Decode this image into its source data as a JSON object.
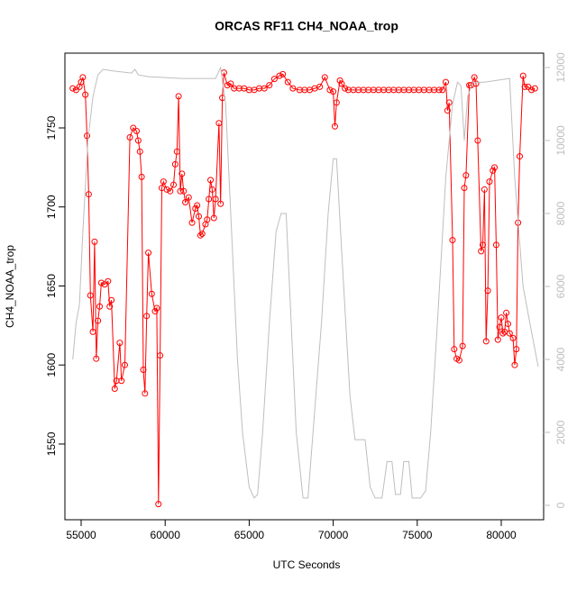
{
  "chart_data": {
    "type": "line",
    "title": "ORCAS RF11 CH4_NOAA_trop",
    "x_label": "UTC Seconds",
    "y_label": "CH4_NOAA_trop",
    "xlim": [
      54034,
      82521
    ],
    "ylim": [
      1502.1,
      1797.3
    ],
    "y2lim": [
      -395,
      12395
    ],
    "xticks": [
      55000,
      60000,
      65000,
      70000,
      75000,
      80000
    ],
    "yticks": [
      1550,
      1600,
      1650,
      1700,
      1750
    ],
    "y2ticks": [
      0,
      2000,
      4000,
      6000,
      8000,
      10000,
      12000
    ],
    "series": [
      {
        "color": "#ff0000",
        "style": "points-line",
        "x": [
          54500,
          54700,
          54900,
          55000,
          55100,
          55250,
          55350,
          55450,
          55550,
          55700,
          55800,
          55900,
          56000,
          56100,
          56200,
          56400,
          56600,
          56700,
          56800,
          57000,
          57100,
          57300,
          57400,
          57600,
          57900,
          58100,
          58300,
          58400,
          58500,
          58600,
          58700,
          58800,
          58900,
          59000,
          59200,
          59400,
          59500,
          59600,
          59700,
          59800,
          59900,
          60100,
          60300,
          60500,
          60600,
          60700,
          60800,
          60900,
          61000,
          61100,
          61200,
          61400,
          61600,
          61800,
          61900,
          62000,
          62100,
          62200,
          62400,
          62500,
          62600,
          62700,
          62800,
          62900,
          63000,
          63200,
          63300,
          63400,
          63500,
          63700,
          63900,
          64100,
          64400,
          64700,
          65000,
          65300,
          65600,
          65900,
          66200,
          66500,
          66800,
          67000,
          67300,
          67600,
          68000,
          68300,
          68600,
          68900,
          69200,
          69500,
          69800,
          70000,
          70100,
          70200,
          70400,
          70500,
          70700,
          70900,
          71200,
          71500,
          71800,
          72100,
          72400,
          72700,
          73000,
          73300,
          73600,
          73900,
          74200,
          74500,
          74800,
          75100,
          75400,
          75700,
          76000,
          76300,
          76500,
          76700,
          76800,
          76900,
          77100,
          77200,
          77350,
          77500,
          77700,
          77800,
          77900,
          78100,
          78200,
          78400,
          78500,
          78600,
          78800,
          78900,
          79000,
          79100,
          79200,
          79300,
          79500,
          79600,
          79700,
          79800,
          79900,
          80000,
          80100,
          80200,
          80300,
          80400,
          80500,
          80700,
          80800,
          80900,
          81000,
          81100,
          81300,
          81400,
          81600,
          81800,
          82000
        ],
        "values": [
          1775,
          1774,
          1776,
          1779,
          1782,
          1771,
          1745,
          1708,
          1644,
          1621,
          1678,
          1604,
          1628,
          1637,
          1652,
          1651,
          1653,
          1637,
          1641,
          1585,
          1590,
          1614,
          1590,
          1600,
          1744,
          1750,
          1748,
          1742,
          1735,
          1719,
          1597,
          1582,
          1631,
          1671,
          1645,
          1634,
          1636,
          1512,
          1606,
          1712,
          1716,
          1711,
          1710,
          1714,
          1727,
          1735,
          1770,
          1710,
          1721,
          1710,
          1703,
          1706,
          1690,
          1699,
          1701,
          1694,
          1682,
          1683,
          1689,
          1692,
          1705,
          1717,
          1711,
          1693,
          1705,
          1753,
          1702,
          1769,
          1785,
          1777,
          1778,
          1775,
          1775,
          1775,
          1774,
          1774,
          1775,
          1775,
          1777,
          1781,
          1783,
          1784,
          1779,
          1775,
          1774,
          1774,
          1774,
          1775,
          1776,
          1782,
          1774,
          1773,
          1751,
          1766,
          1780,
          1778,
          1775,
          1774,
          1774,
          1774,
          1774,
          1774,
          1774,
          1774,
          1774,
          1774,
          1774,
          1774,
          1774,
          1774,
          1774,
          1774,
          1774,
          1774,
          1774,
          1774,
          1774,
          1779,
          1761,
          1766,
          1679,
          1610,
          1604,
          1603,
          1612,
          1712,
          1720,
          1777,
          1777,
          1782,
          1778,
          1742,
          1672,
          1676,
          1711,
          1615,
          1647,
          1716,
          1723,
          1725,
          1676,
          1616,
          1624,
          1630,
          1620,
          1621,
          1633,
          1626,
          1620,
          1617,
          1600,
          1610,
          1690,
          1732,
          1783,
          1776,
          1776,
          1774,
          1775
        ]
      },
      {
        "color": "#bebebe",
        "style": "line",
        "axis": "y2",
        "x": [
          54500,
          54700,
          54900,
          55100,
          55400,
          55700,
          56000,
          56300,
          57000,
          58000,
          58200,
          58400,
          59000,
          61000,
          63000,
          63300,
          63600,
          64000,
          64300,
          64600,
          65000,
          65300,
          65500,
          65800,
          66200,
          66600,
          66900,
          67200,
          67500,
          67800,
          68200,
          68500,
          68800,
          69300,
          69700,
          70000,
          70200,
          70500,
          71000,
          71300,
          71700,
          71900,
          72200,
          72500,
          72900,
          73200,
          73500,
          73700,
          74000,
          74200,
          74500,
          74700,
          75200,
          75500,
          75800,
          76200,
          76700,
          77100,
          77400,
          77600,
          77800,
          78000,
          78300,
          79000,
          80500,
          80800,
          81300,
          81700,
          82200
        ],
        "values": [
          4000,
          5000,
          5500,
          7500,
          10000,
          11200,
          11800,
          11950,
          11900,
          11850,
          11950,
          11800,
          11750,
          11700,
          11700,
          12000,
          11000,
          7000,
          4000,
          2000,
          500,
          200,
          300,
          2000,
          5000,
          7500,
          8000,
          8000,
          5000,
          2000,
          200,
          200,
          2000,
          5000,
          8000,
          9500,
          9500,
          7000,
          3000,
          1800,
          1800,
          1800,
          500,
          200,
          200,
          1200,
          1200,
          300,
          300,
          1200,
          1200,
          200,
          200,
          400,
          2000,
          5000,
          9000,
          11000,
          11600,
          11500,
          10000,
          11200,
          11600,
          11600,
          11700,
          9000,
          6000,
          5000,
          3800
        ]
      }
    ]
  }
}
